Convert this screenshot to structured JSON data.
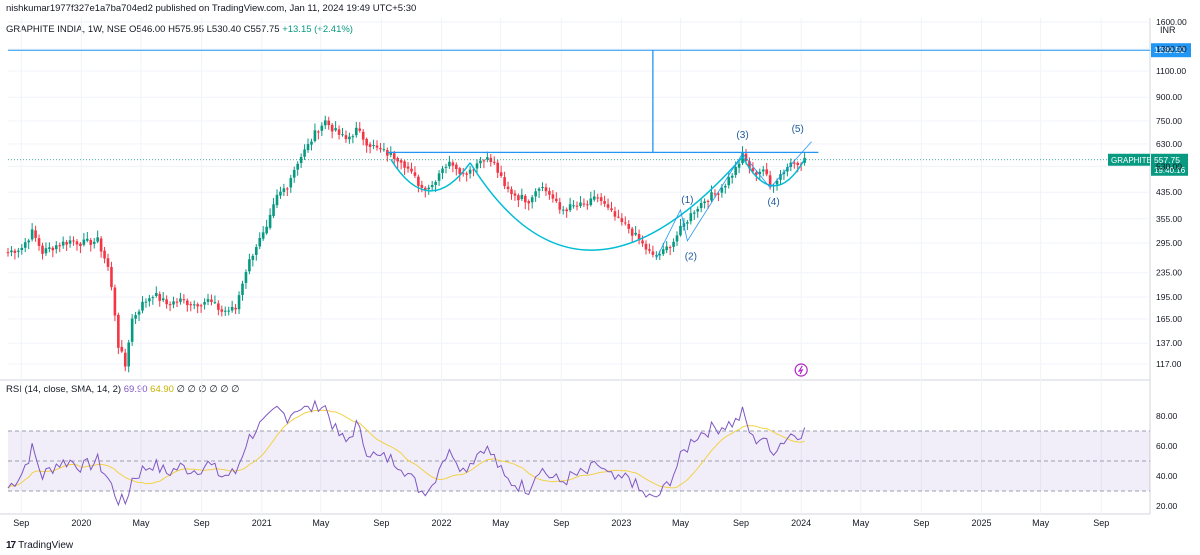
{
  "header": {
    "published_line": "nishkumar1977f327e1a7ba704ed2 published on TradingView.com, Jan 11, 2024 19:49 UTC+5:30",
    "symbol_line": "GRAPHITE INDIA, 1W, NSE",
    "ohlc": "O546.00 H575.95 L530.40 C557.75",
    "change": "+13.15 (+2.41%)"
  },
  "rsi_legend": {
    "label": "RSI (14, close, SMA, 14, 2)",
    "value": "69.90",
    "sma_value": "64.90",
    "extras": "∅ ∅ ∅ ∅ ∅ ∅"
  },
  "footer": {
    "brand": "TradingView",
    "logo_glyph": "17"
  },
  "colors": {
    "up": "#089981",
    "down": "#f23645",
    "line": "#2196f3",
    "pattern": "#00bcd4",
    "rsi": "#7e57c2",
    "rsi_ma": "#f2d146"
  },
  "chart_data": [
    {
      "type": "candlestick",
      "title": "GRAPHITE INDIA, 1W, NSE",
      "currency": "INR",
      "y_scale": "log",
      "ylim": [
        105,
        1650
      ],
      "yticks": [
        117,
        137,
        165,
        195,
        235,
        295,
        355,
        435,
        530,
        630,
        750,
        900,
        1100,
        1300,
        1600
      ],
      "ytick_labels": [
        "117.00",
        "137.00",
        "165.00",
        "195.00",
        "235.00",
        "295.00",
        "355.00",
        "435.00",
        "530.00",
        "630.00",
        "750.00",
        "900.00",
        "1100.00",
        "1300.00",
        "1600.00"
      ],
      "xlim": [
        "2019-08-05",
        "2025-12-05"
      ],
      "xticks": [
        {
          "date": "2019-09-01",
          "label": "Sep"
        },
        {
          "date": "2020-01-01",
          "label": "2020"
        },
        {
          "date": "2020-05-01",
          "label": "May"
        },
        {
          "date": "2020-09-01",
          "label": "Sep"
        },
        {
          "date": "2021-01-01",
          "label": "2021"
        },
        {
          "date": "2021-05-01",
          "label": "May"
        },
        {
          "date": "2021-09-01",
          "label": "Sep"
        },
        {
          "date": "2022-01-01",
          "label": "2022"
        },
        {
          "date": "2022-05-01",
          "label": "May"
        },
        {
          "date": "2022-09-01",
          "label": "Sep"
        },
        {
          "date": "2023-01-01",
          "label": "2023"
        },
        {
          "date": "2023-05-01",
          "label": "May"
        },
        {
          "date": "2023-09-01",
          "label": "Sep"
        },
        {
          "date": "2024-01-01",
          "label": "2024"
        },
        {
          "date": "2024-05-01",
          "label": "May"
        },
        {
          "date": "2024-09-01",
          "label": "Sep"
        },
        {
          "date": "2025-01-01",
          "label": "2025"
        },
        {
          "date": "2025-05-01",
          "label": "May"
        },
        {
          "date": "2025-09-01",
          "label": "Sep"
        }
      ],
      "price_path": [
        [
          "2019-08-05",
          275
        ],
        [
          "2019-09-02",
          285
        ],
        [
          "2019-09-23",
          320
        ],
        [
          "2019-10-14",
          275
        ],
        [
          "2019-11-11",
          290
        ],
        [
          "2019-12-09",
          300
        ],
        [
          "2020-01-06",
          295
        ],
        [
          "2020-02-03",
          300
        ],
        [
          "2020-02-24",
          245
        ],
        [
          "2020-03-16",
          135
        ],
        [
          "2020-03-30",
          115
        ],
        [
          "2020-04-13",
          165
        ],
        [
          "2020-05-04",
          185
        ],
        [
          "2020-05-25",
          200
        ],
        [
          "2020-06-22",
          185
        ],
        [
          "2020-07-20",
          190
        ],
        [
          "2020-08-17",
          185
        ],
        [
          "2020-09-14",
          190
        ],
        [
          "2020-10-12",
          175
        ],
        [
          "2020-11-09",
          178
        ],
        [
          "2020-11-30",
          240
        ],
        [
          "2020-12-21",
          290
        ],
        [
          "2021-01-11",
          325
        ],
        [
          "2021-02-01",
          420
        ],
        [
          "2021-02-22",
          460
        ],
        [
          "2021-03-15",
          550
        ],
        [
          "2021-04-05",
          620
        ],
        [
          "2021-04-26",
          710
        ],
        [
          "2021-05-10",
          750
        ],
        [
          "2021-05-31",
          690
        ],
        [
          "2021-06-21",
          650
        ],
        [
          "2021-07-12",
          700
        ],
        [
          "2021-08-02",
          640
        ],
        [
          "2021-08-23",
          605
        ],
        [
          "2021-09-13",
          585
        ],
        [
          "2021-10-11",
          560
        ],
        [
          "2021-11-01",
          500
        ],
        [
          "2021-11-22",
          450
        ],
        [
          "2021-12-13",
          460
        ],
        [
          "2022-01-03",
          530
        ],
        [
          "2022-01-24",
          545
        ],
        [
          "2022-02-14",
          500
        ],
        [
          "2022-03-07",
          530
        ],
        [
          "2022-03-28",
          570
        ],
        [
          "2022-04-18",
          540
        ],
        [
          "2022-05-09",
          450
        ],
        [
          "2022-06-06",
          420
        ],
        [
          "2022-06-27",
          410
        ],
        [
          "2022-07-18",
          460
        ],
        [
          "2022-08-08",
          430
        ],
        [
          "2022-08-29",
          380
        ],
        [
          "2022-09-26",
          390
        ],
        [
          "2022-10-24",
          395
        ],
        [
          "2022-11-14",
          420
        ],
        [
          "2022-12-05",
          380
        ],
        [
          "2022-12-26",
          350
        ],
        [
          "2023-01-16",
          330
        ],
        [
          "2023-02-06",
          300
        ],
        [
          "2023-03-06",
          265
        ],
        [
          "2023-03-27",
          275
        ],
        [
          "2023-04-17",
          300
        ],
        [
          "2023-05-08",
          340
        ],
        [
          "2023-05-29",
          380
        ],
        [
          "2023-06-19",
          410
        ],
        [
          "2023-07-10",
          430
        ],
        [
          "2023-07-31",
          465
        ],
        [
          "2023-08-21",
          520
        ],
        [
          "2023-09-04",
          575
        ],
        [
          "2023-09-25",
          500
        ],
        [
          "2023-10-16",
          520
        ],
        [
          "2023-10-30",
          455
        ],
        [
          "2023-11-20",
          500
        ],
        [
          "2023-12-11",
          545
        ],
        [
          "2024-01-08",
          557.75
        ]
      ],
      "last_price": {
        "label": "557.75",
        "symbol": "GRAPHITE",
        "countdown": "19:40:16"
      },
      "target_line": {
        "value": 1289.5,
        "label": "1289.50"
      },
      "neckline": 590,
      "elliott_labels": [
        {
          "text": "(1)",
          "date": "2023-05-15",
          "price": 400
        },
        {
          "text": "(2)",
          "date": "2023-05-22",
          "price": 260
        },
        {
          "text": "(3)",
          "date": "2023-09-04",
          "price": 660
        },
        {
          "text": "(4)",
          "date": "2023-11-06",
          "price": 395
        },
        {
          "text": "(5)",
          "date": "2023-12-25",
          "price": 690
        }
      ]
    },
    {
      "type": "line",
      "title": "RSI (14, close, SMA, 14, 2)",
      "ylim": [
        16,
        92
      ],
      "yticks": [
        20,
        40,
        60,
        80
      ],
      "ytick_labels": [
        "20.00",
        "40.00",
        "60.00",
        "80.00"
      ],
      "bands": [
        30,
        50,
        70
      ],
      "rsi_path": [
        [
          "2019-08-05",
          32
        ],
        [
          "2019-09-02",
          42
        ],
        [
          "2019-09-23",
          58
        ],
        [
          "2019-10-14",
          40
        ],
        [
          "2019-11-11",
          48
        ],
        [
          "2019-12-09",
          50
        ],
        [
          "2020-01-06",
          46
        ],
        [
          "2020-02-03",
          50
        ],
        [
          "2020-02-24",
          38
        ],
        [
          "2020-03-16",
          24
        ],
        [
          "2020-03-30",
          22
        ],
        [
          "2020-04-13",
          38
        ],
        [
          "2020-05-04",
          44
        ],
        [
          "2020-05-25",
          48
        ],
        [
          "2020-06-22",
          42
        ],
        [
          "2020-07-20",
          46
        ],
        [
          "2020-08-17",
          44
        ],
        [
          "2020-09-14",
          48
        ],
        [
          "2020-10-12",
          40
        ],
        [
          "2020-11-09",
          42
        ],
        [
          "2020-11-30",
          62
        ],
        [
          "2020-12-21",
          72
        ],
        [
          "2021-01-11",
          76
        ],
        [
          "2021-02-01",
          84
        ],
        [
          "2021-02-22",
          80
        ],
        [
          "2021-03-15",
          86
        ],
        [
          "2021-04-05",
          84
        ],
        [
          "2021-04-26",
          88
        ],
        [
          "2021-05-10",
          86
        ],
        [
          "2021-05-31",
          70
        ],
        [
          "2021-06-21",
          62
        ],
        [
          "2021-07-12",
          74
        ],
        [
          "2021-08-02",
          58
        ],
        [
          "2021-08-23",
          52
        ],
        [
          "2021-09-13",
          52
        ],
        [
          "2021-10-11",
          48
        ],
        [
          "2021-11-01",
          38
        ],
        [
          "2021-11-22",
          30
        ],
        [
          "2021-12-13",
          34
        ],
        [
          "2022-01-03",
          52
        ],
        [
          "2022-01-24",
          56
        ],
        [
          "2022-02-14",
          44
        ],
        [
          "2022-03-07",
          52
        ],
        [
          "2022-03-28",
          60
        ],
        [
          "2022-04-18",
          52
        ],
        [
          "2022-05-09",
          38
        ],
        [
          "2022-06-06",
          34
        ],
        [
          "2022-06-27",
          32
        ],
        [
          "2022-07-18",
          46
        ],
        [
          "2022-08-08",
          40
        ],
        [
          "2022-08-29",
          36
        ],
        [
          "2022-09-26",
          40
        ],
        [
          "2022-10-24",
          42
        ],
        [
          "2022-11-14",
          48
        ],
        [
          "2022-12-05",
          40
        ],
        [
          "2022-12-26",
          36
        ],
        [
          "2023-01-16",
          40
        ],
        [
          "2023-02-06",
          30
        ],
        [
          "2023-03-06",
          24
        ],
        [
          "2023-03-27",
          30
        ],
        [
          "2023-04-17",
          42
        ],
        [
          "2023-05-08",
          56
        ],
        [
          "2023-05-29",
          66
        ],
        [
          "2023-06-19",
          70
        ],
        [
          "2023-07-10",
          72
        ],
        [
          "2023-07-31",
          74
        ],
        [
          "2023-08-21",
          76
        ],
        [
          "2023-09-04",
          82
        ],
        [
          "2023-09-25",
          64
        ],
        [
          "2023-10-16",
          66
        ],
        [
          "2023-10-30",
          56
        ],
        [
          "2023-11-20",
          62
        ],
        [
          "2023-12-11",
          68
        ],
        [
          "2024-01-08",
          69.9
        ]
      ]
    }
  ]
}
